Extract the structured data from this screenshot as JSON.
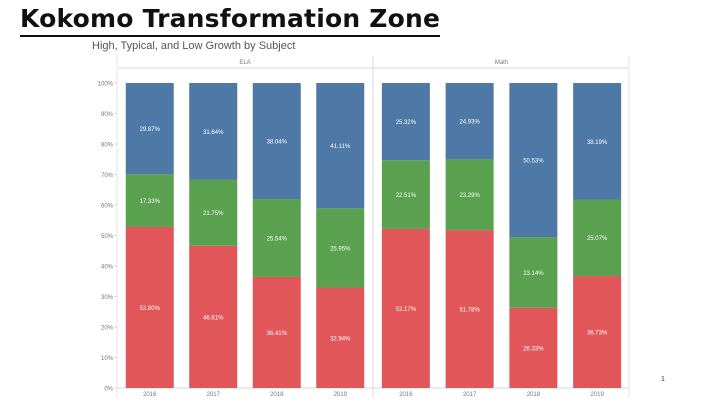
{
  "slide": {
    "title": "Kokomo Transformation Zone",
    "page_number": "1"
  },
  "chart_data": {
    "type": "bar",
    "stacked": true,
    "title": "High, Typical, and Low Growth by Subject",
    "panels": [
      "ELA",
      "Math"
    ],
    "categories": [
      "2016",
      "2017",
      "2018",
      "2019"
    ],
    "series": [
      {
        "color": "#e15759",
        "values": {
          "ELA": [
            52.8,
            46.61,
            36.41,
            32.94
          ],
          "Math": [
            52.17,
            51.78,
            26.33,
            36.73
          ]
        },
        "labels": {
          "ELA": [
            "52.80%",
            "46.61%",
            "36.41%",
            "32.94%"
          ],
          "Math": [
            "52.17%",
            "51.78%",
            "26.33%",
            "36.73%"
          ]
        }
      },
      {
        "color": "#59a14f",
        "values": {
          "ELA": [
            17.33,
            21.75,
            25.54,
            25.95
          ],
          "Math": [
            22.51,
            23.29,
            23.14,
            25.07
          ]
        },
        "labels": {
          "ELA": [
            "17.33%",
            "21.75%",
            "25.54%",
            "25.95%"
          ],
          "Math": [
            "22.51%",
            "23.29%",
            "23.14%",
            "25.07%"
          ]
        }
      },
      {
        "color": "#4e79a7",
        "values": {
          "ELA": [
            29.87,
            31.64,
            38.04,
            41.11
          ],
          "Math": [
            25.32,
            24.93,
            50.53,
            38.19
          ]
        },
        "labels": {
          "ELA": [
            "29.87%",
            "31.64%",
            "38.04%",
            "41.11%"
          ],
          "Math": [
            "25.32%",
            "24.93%",
            "50.53%",
            "38.19%"
          ]
        }
      }
    ],
    "y_ticks": [
      "0%",
      "10%",
      "20%",
      "30%",
      "40%",
      "50%",
      "60%",
      "70%",
      "80%",
      "90%",
      "100%"
    ],
    "ylim": [
      0,
      100
    ],
    "grid": false
  }
}
